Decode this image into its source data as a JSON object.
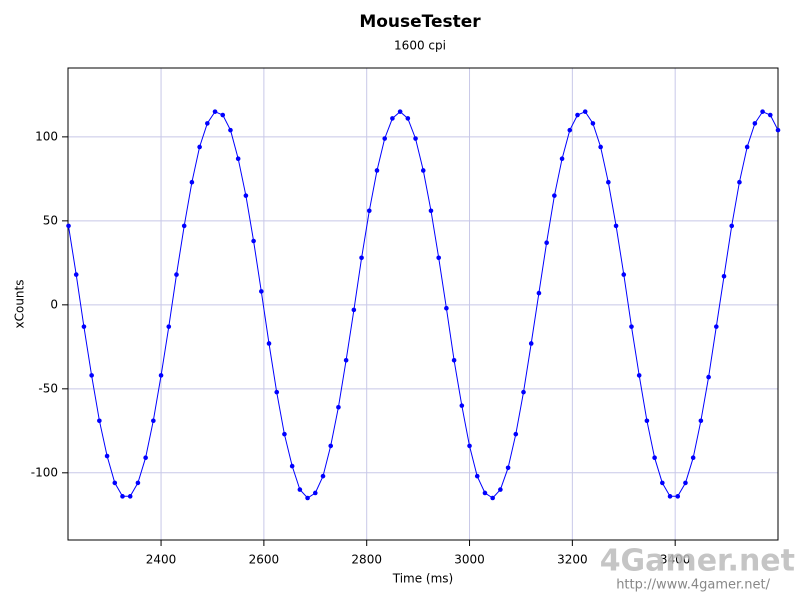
{
  "chart_data": {
    "type": "scatter",
    "title": "MouseTester",
    "subtitle": "1600 cpi",
    "x_label": "Time (ms)",
    "y_label": "xCounts",
    "watermark": "4Gamer.net",
    "watermark_url": "http://www.4gamer.net/",
    "xlim": [
      2219,
      3600
    ],
    "ylim": [
      -140,
      141
    ],
    "xticks": [
      2400,
      2600,
      2800,
      3000,
      3200,
      3400
    ],
    "yticks": [
      -100,
      -50,
      0,
      50,
      100
    ],
    "grid": true,
    "series": [
      {
        "color": "#0000ff",
        "x": [
          2220,
          2235,
          2250,
          2265,
          2280,
          2295,
          2310,
          2325,
          2340,
          2355,
          2370,
          2385,
          2400,
          2415,
          2430,
          2445,
          2460,
          2475,
          2490,
          2505,
          2520,
          2535,
          2550,
          2565,
          2580,
          2595,
          2610,
          2625,
          2640,
          2655,
          2670,
          2685,
          2700,
          2715,
          2730,
          2745,
          2760,
          2775,
          2790,
          2805,
          2820,
          2835,
          2850,
          2865,
          2880,
          2895,
          2910,
          2925,
          2940,
          2955,
          2970,
          2985,
          3000,
          3015,
          3030,
          3045,
          3060,
          3075,
          3090,
          3105,
          3120,
          3135,
          3150,
          3165,
          3180,
          3195,
          3210,
          3225,
          3240,
          3255,
          3270,
          3285,
          3300,
          3315,
          3330,
          3345,
          3360,
          3375,
          3390,
          3405,
          3420,
          3435,
          3450,
          3465,
          3480,
          3495,
          3510,
          3525,
          3540,
          3555,
          3570,
          3585,
          3600
        ],
        "values": [
          47,
          18,
          -13,
          -42,
          -69,
          -90,
          -106,
          -114,
          -114,
          -106,
          -91,
          -69,
          -42,
          -13,
          18,
          47,
          73,
          94,
          108,
          115,
          113,
          104,
          87,
          65,
          38,
          8,
          -23,
          -52,
          -77,
          -96,
          -110,
          -115,
          -112,
          -102,
          -84,
          -61,
          -33,
          -3,
          28,
          56,
          80,
          99,
          111,
          115,
          111,
          99,
          80,
          56,
          28,
          -2,
          -33,
          -60,
          -84,
          -102,
          -112,
          -115,
          -110,
          -97,
          -77,
          -52,
          -23,
          7,
          37,
          65,
          87,
          104,
          113,
          115,
          108,
          94,
          73,
          47,
          18,
          -13,
          -42,
          -69,
          -91,
          -106,
          -114,
          -114,
          -106,
          -91,
          -69,
          -43,
          -13,
          17,
          47,
          73,
          94,
          108,
          115,
          113,
          104
        ]
      }
    ]
  }
}
